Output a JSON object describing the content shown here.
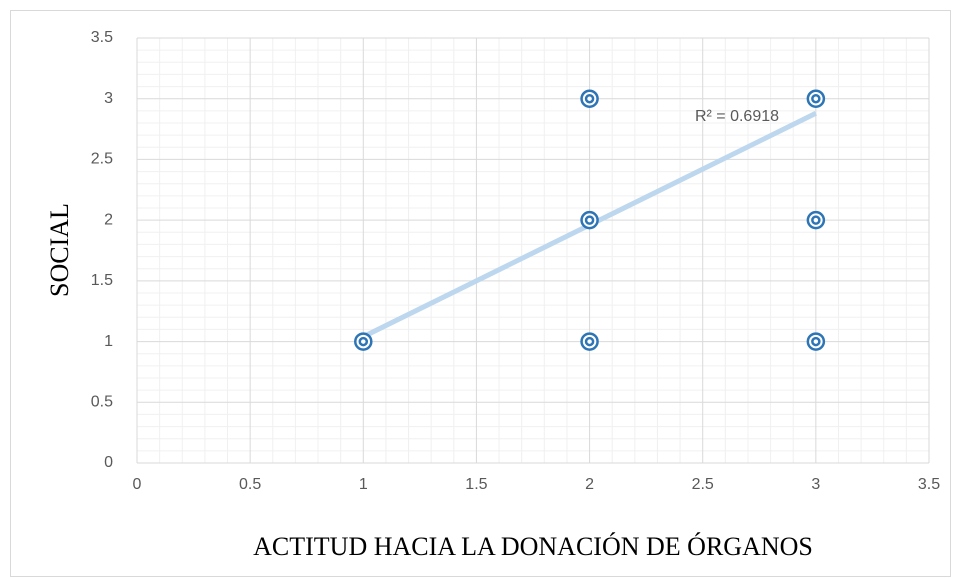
{
  "chart_data": {
    "type": "scatter",
    "x_label": "ACTITUD HACIA LA DONACIÓN DE ÓRGANOS",
    "y_label": "SOCIAL",
    "x": [
      1,
      2,
      2,
      2,
      3,
      3,
      3
    ],
    "values": [
      1,
      1,
      2,
      3,
      1,
      2,
      3
    ],
    "color": "#2e75b6",
    "xlim": [
      0,
      3.5
    ],
    "ylim": [
      0,
      3.5
    ],
    "xticks": [
      0,
      0.5,
      1,
      1.5,
      2,
      2.5,
      3,
      3.5
    ],
    "yticks": [
      0,
      0.5,
      1,
      1.5,
      2,
      2.5,
      3,
      3.5
    ],
    "grid": true,
    "minor_grid": true,
    "trendline": {
      "x": [
        1,
        3
      ],
      "y": [
        1.04,
        2.88
      ],
      "color": "#bdd7ee",
      "label": "R² = 0.6918"
    }
  }
}
